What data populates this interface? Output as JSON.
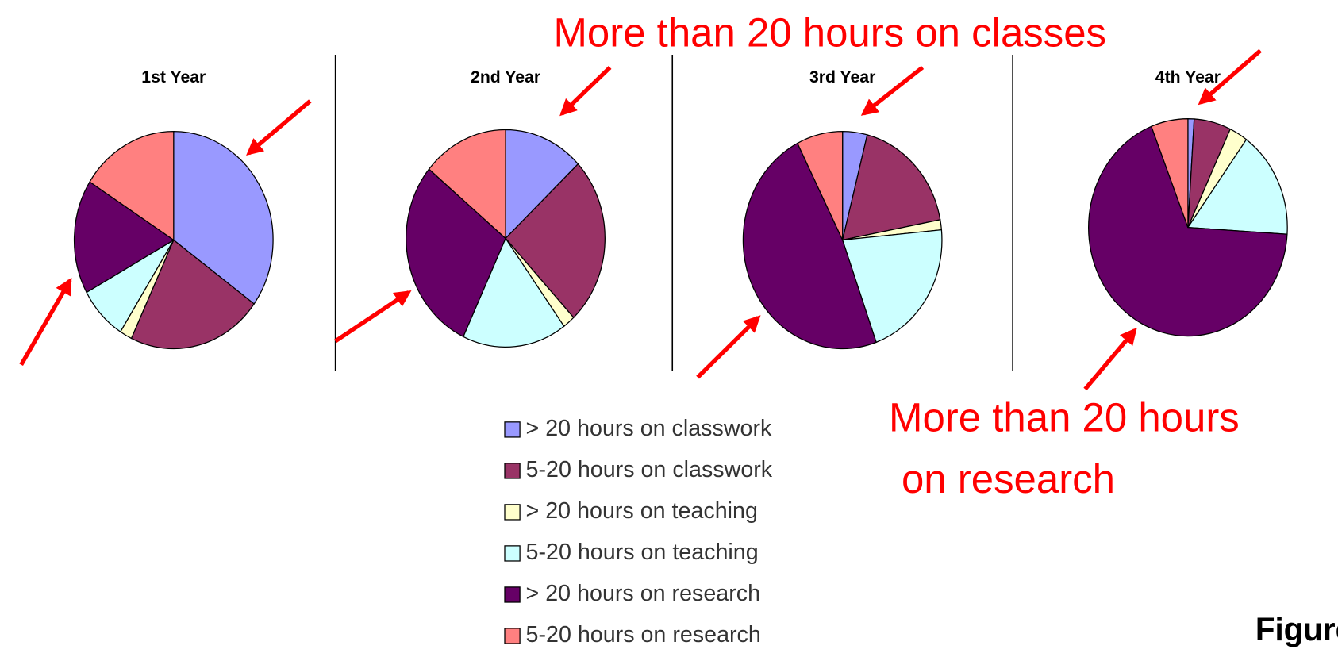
{
  "categories": [
    "> 20 hours on classwork",
    "5-20 hours on classwork",
    "> 20 hours on teaching",
    "5-20 hours on teaching",
    "> 20 hours on research",
    "5-20 hours on research"
  ],
  "colors": [
    "#9999ff",
    "#993366",
    "#ffffcc",
    "#ccffff",
    "#660066",
    "#ff8080"
  ],
  "chart_data": [
    {
      "type": "pie",
      "title": "1st Year",
      "values": [
        35,
        22,
        2,
        8,
        17,
        16
      ]
    },
    {
      "type": "pie",
      "title": "2nd Year",
      "values": [
        13,
        25,
        2,
        17,
        29,
        14
      ]
    },
    {
      "type": "pie",
      "title": "3rd Year",
      "values": [
        4,
        18,
        1.5,
        21,
        48,
        7.5
      ]
    },
    {
      "type": "pie",
      "title": "4th Year",
      "values": [
        1,
        6,
        3,
        16,
        68,
        6
      ]
    }
  ],
  "annotations": {
    "classes": "More than 20 hours on classes",
    "research": [
      "More than 20 hours",
      "on research"
    ]
  },
  "figure_label": "Figure"
}
